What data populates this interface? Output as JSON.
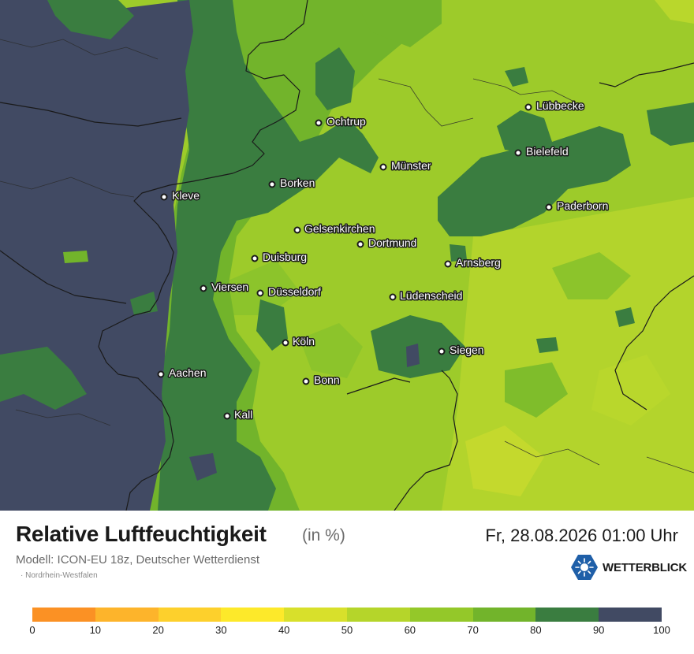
{
  "title": "Relative Luftfeuchtigkeit",
  "unit": "(in %)",
  "datetime": "Fr, 28.08.2026 01:00 Uhr",
  "model": "Modell: ICON-EU 18z, Deutscher Wetterdienst",
  "region": "· Nordrhein-Westfalen",
  "brand": "WETTERBLICK",
  "legend": {
    "colors": [
      "#fb9124",
      "#fdb42b",
      "#fdd02c",
      "#fde92a",
      "#d8e02b",
      "#b5d52a",
      "#94c829",
      "#72b42b",
      "#3a7d40",
      "#414a63"
    ],
    "ticks": [
      "0",
      "10",
      "20",
      "30",
      "40",
      "50",
      "60",
      "70",
      "80",
      "90",
      "100"
    ]
  },
  "cities": [
    {
      "name": "Lübbecke",
      "slug": "luebbecke"
    },
    {
      "name": "Ochtrup",
      "slug": "ochtrup"
    },
    {
      "name": "Bielefeld",
      "slug": "bielefeld"
    },
    {
      "name": "Münster",
      "slug": "muenster"
    },
    {
      "name": "Borken",
      "slug": "borken"
    },
    {
      "name": "Kleve",
      "slug": "kleve"
    },
    {
      "name": "Paderborn",
      "slug": "paderborn"
    },
    {
      "name": "Gelsenkirchen",
      "slug": "gelsenkirchen"
    },
    {
      "name": "Dortmund",
      "slug": "dortmund"
    },
    {
      "name": "Duisburg",
      "slug": "duisburg"
    },
    {
      "name": "Arnsberg",
      "slug": "arnsberg"
    },
    {
      "name": "Viersen",
      "slug": "viersen"
    },
    {
      "name": "Düsseldorf",
      "slug": "duesseldorf"
    },
    {
      "name": "Lüdenscheid",
      "slug": "luedenscheid"
    },
    {
      "name": "Köln",
      "slug": "koeln"
    },
    {
      "name": "Siegen",
      "slug": "siegen"
    },
    {
      "name": "Aachen",
      "slug": "aachen"
    },
    {
      "name": "Bonn",
      "slug": "bonn"
    },
    {
      "name": "Kall",
      "slug": "kall"
    }
  ]
}
